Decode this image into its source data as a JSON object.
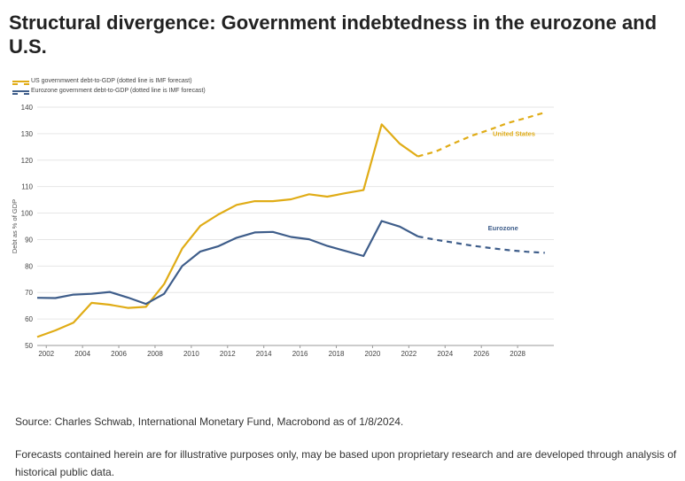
{
  "title": "Structural divergence: Government indebtedness in the eurozone and U.S.",
  "colors": {
    "us": "#e0ac16",
    "eurozone": "#3e5d8a",
    "grid": "#e6e6e6",
    "axis": "#999999"
  },
  "legend": [
    {
      "label": "US governmwent debt-to-GDP (dotted line is IMF forecast)"
    },
    {
      "label": "Eurozone government debt-to-GDP (dotted line is IMF forecast)"
    }
  ],
  "chart_data": {
    "type": "line",
    "ylabel": "Debt as % of GDP",
    "xlabel": "",
    "xlim": [
      2001.5,
      2030
    ],
    "ylim": [
      50,
      140
    ],
    "yticks": [
      50,
      60,
      70,
      80,
      90,
      100,
      110,
      120,
      130,
      140
    ],
    "xticks": [
      2002,
      2004,
      2006,
      2008,
      2010,
      2012,
      2014,
      2016,
      2018,
      2020,
      2022,
      2024,
      2026,
      2028
    ],
    "grid": true,
    "legend_position": "top-left",
    "series": [
      {
        "name": "US governmwent debt-to-GDP (dotted line is IMF forecast)",
        "label": "United States",
        "x": [
          2001.5,
          2002.5,
          2003.5,
          2004.5,
          2005.5,
          2006.5,
          2007.5,
          2008.5,
          2009.5,
          2010.5,
          2011.5,
          2012.5,
          2013.5,
          2014.5,
          2015.5,
          2016.5,
          2017.5,
          2018.5,
          2019.5,
          2020.5,
          2021.5,
          2022.5
        ],
        "values": [
          53.2,
          55.7,
          58.6,
          66.1,
          65.4,
          64.2,
          64.6,
          73.2,
          86.6,
          95.2,
          99.5,
          103.1,
          104.5,
          104.5,
          105.2,
          107.1,
          106.2,
          107.5,
          108.7,
          133.5,
          126.2,
          121.4
        ],
        "forecast_x": [
          2022.5,
          2023.5,
          2024.5,
          2025.5,
          2026.5,
          2027.5,
          2028.5,
          2029.5
        ],
        "forecast_values": [
          121.4,
          123.3,
          126.4,
          129.3,
          131.6,
          134.1,
          136.0,
          138.0
        ]
      },
      {
        "name": "Eurozone government debt-to-GDP (dotted line is IMF forecast)",
        "label": "Eurozone",
        "x": [
          2001.5,
          2002.5,
          2003.5,
          2004.5,
          2005.5,
          2006.5,
          2007.5,
          2008.5,
          2009.5,
          2010.5,
          2011.5,
          2012.5,
          2013.5,
          2014.5,
          2015.5,
          2016.5,
          2017.5,
          2018.5,
          2019.5,
          2020.5,
          2021.5,
          2022.5
        ],
        "values": [
          68.0,
          67.9,
          69.2,
          69.5,
          70.2,
          68.1,
          65.7,
          69.5,
          80.0,
          85.5,
          87.5,
          90.7,
          92.7,
          92.9,
          91.0,
          90.1,
          87.6,
          85.7,
          83.8,
          97.0,
          94.9,
          91.2
        ],
        "forecast_x": [
          2022.5,
          2023.5,
          2024.5,
          2025.5,
          2026.5,
          2027.5,
          2028.5,
          2029.5
        ],
        "forecast_values": [
          91.2,
          89.9,
          88.8,
          87.7,
          86.8,
          86.0,
          85.4,
          85.0
        ]
      }
    ]
  },
  "source": "Source: Charles Schwab, International Monetary Fund, Macrobond as of 1/8/2024.",
  "disclaimer": "Forecasts contained herein are for illustrative purposes only, may be based upon proprietary research and are developed through analysis of historical public data."
}
